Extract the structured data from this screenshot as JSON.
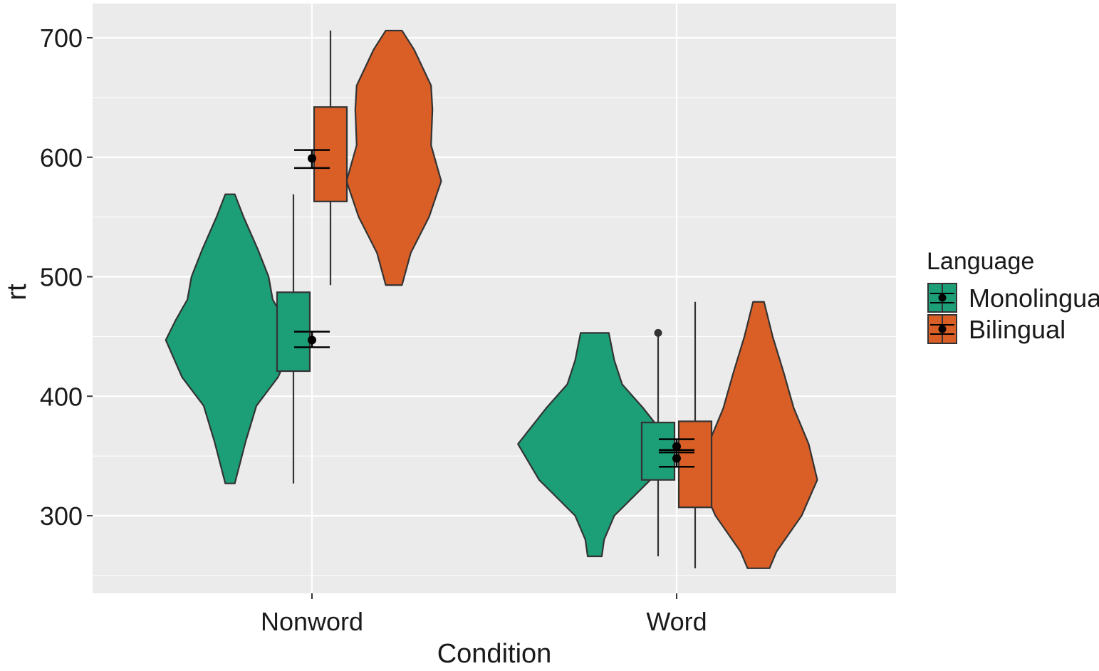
{
  "chart_data": {
    "type": "violin",
    "title": "",
    "xlabel": "Condition",
    "ylabel": "rt",
    "ylim": [
      235,
      729
    ],
    "yticks": [
      300,
      400,
      500,
      600,
      700
    ],
    "categories": [
      "Nonword",
      "Word"
    ],
    "legend": {
      "title": "Language",
      "placement": "right",
      "entries": [
        "Monolingual",
        "Bilingual"
      ]
    },
    "colors": {
      "Monolingual": "#1c9e77",
      "Bilingual": "#d95f27",
      "panel": "#ebebeb",
      "grid": "#ffffff",
      "outline": "#333333"
    },
    "series": [
      {
        "name": "Monolingual",
        "groups": [
          {
            "category": "Nonword",
            "violin": [
              [
                327,
                0.07
              ],
              [
                362,
                0.23
              ],
              [
                392,
                0.39
              ],
              [
                416,
                0.71
              ],
              [
                447,
                0.95
              ],
              [
                463,
                0.81
              ],
              [
                481,
                0.63
              ],
              [
                500,
                0.57
              ],
              [
                523,
                0.41
              ],
              [
                550,
                0.2
              ],
              [
                569,
                0.07
              ]
            ],
            "box": {
              "q1": 421,
              "q3": 487,
              "whisker_low": 327,
              "whisker_high": 569,
              "outliers": []
            },
            "mean": 447,
            "ci": [
              441,
              454
            ]
          },
          {
            "category": "Word",
            "violin": [
              [
                266,
                0.09
              ],
              [
                280,
                0.12
              ],
              [
                300,
                0.25
              ],
              [
                330,
                0.71
              ],
              [
                360,
                0.98
              ],
              [
                390,
                0.62
              ],
              [
                410,
                0.35
              ],
              [
                430,
                0.25
              ],
              [
                453,
                0.18
              ]
            ],
            "box": {
              "q1": 330,
              "q3": 378,
              "whisker_low": 266,
              "whisker_high": 450,
              "outliers": [
                453
              ]
            },
            "mean": 348,
            "ci": [
              341,
              355
            ]
          }
        ]
      },
      {
        "name": "Bilingual",
        "groups": [
          {
            "category": "Nonword",
            "violin": [
              [
                493,
                0.12
              ],
              [
                520,
                0.25
              ],
              [
                550,
                0.52
              ],
              [
                580,
                0.7
              ],
              [
                610,
                0.55
              ],
              [
                640,
                0.57
              ],
              [
                660,
                0.55
              ],
              [
                690,
                0.3
              ],
              [
                706,
                0.12
              ]
            ],
            "box": {
              "q1": 563,
              "q3": 642,
              "whisker_low": 493,
              "whisker_high": 706,
              "outliers": []
            },
            "mean": 599,
            "ci": [
              591,
              606
            ]
          },
          {
            "category": "Word",
            "violin": [
              [
                256,
                0.14
              ],
              [
                270,
                0.23
              ],
              [
                300,
                0.55
              ],
              [
                330,
                0.75
              ],
              [
                360,
                0.64
              ],
              [
                390,
                0.45
              ],
              [
                420,
                0.32
              ],
              [
                450,
                0.18
              ],
              [
                479,
                0.07
              ]
            ],
            "box": {
              "q1": 307,
              "q3": 379,
              "whisker_low": 256,
              "whisker_high": 479,
              "outliers": []
            },
            "mean": 358,
            "ci": [
              353,
              364
            ]
          }
        ]
      }
    ]
  }
}
